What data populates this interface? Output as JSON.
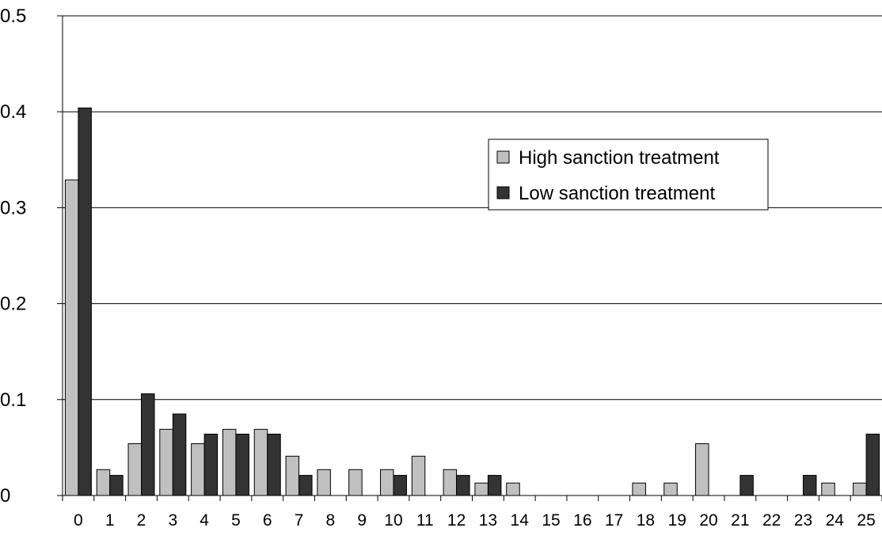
{
  "chart_data": {
    "type": "bar",
    "categories": [
      "0",
      "1",
      "2",
      "3",
      "4",
      "5",
      "6",
      "7",
      "8",
      "9",
      "10",
      "11",
      "12",
      "13",
      "14",
      "15",
      "16",
      "17",
      "18",
      "19",
      "20",
      "21",
      "22",
      "23",
      "24",
      "25"
    ],
    "series": [
      {
        "name": "High sanction treatment",
        "color": "#c0c0c0",
        "values": [
          0.329,
          0.027,
          0.054,
          0.069,
          0.054,
          0.069,
          0.069,
          0.041,
          0.027,
          0.027,
          0.027,
          0.041,
          0.027,
          0.013,
          0.013,
          0,
          0,
          0,
          0.013,
          0.013,
          0.054,
          0,
          0,
          0,
          0.013,
          0.013
        ]
      },
      {
        "name": "Low sanction treatment",
        "color": "#333333",
        "values": [
          0.404,
          0.021,
          0.106,
          0.085,
          0.064,
          0.064,
          0.064,
          0.021,
          0,
          0,
          0.021,
          0,
          0.021,
          0.021,
          0,
          0,
          0,
          0,
          0,
          0,
          0,
          0.021,
          0,
          0.021,
          0,
          0.064
        ]
      }
    ],
    "yticks": [
      {
        "value": 0,
        "label": "0"
      },
      {
        "value": 0.1,
        "label": "0.1"
      },
      {
        "value": 0.2,
        "label": "0.2"
      },
      {
        "value": 0.3,
        "label": "0.3"
      },
      {
        "value": 0.4,
        "label": "0.4"
      },
      {
        "value": 0.5,
        "label": "0.5"
      }
    ],
    "ylim": [
      0,
      0.5
    ],
    "grid": true,
    "legend_position": "upper-right",
    "title": "",
    "xlabel": "",
    "ylabel": ""
  }
}
